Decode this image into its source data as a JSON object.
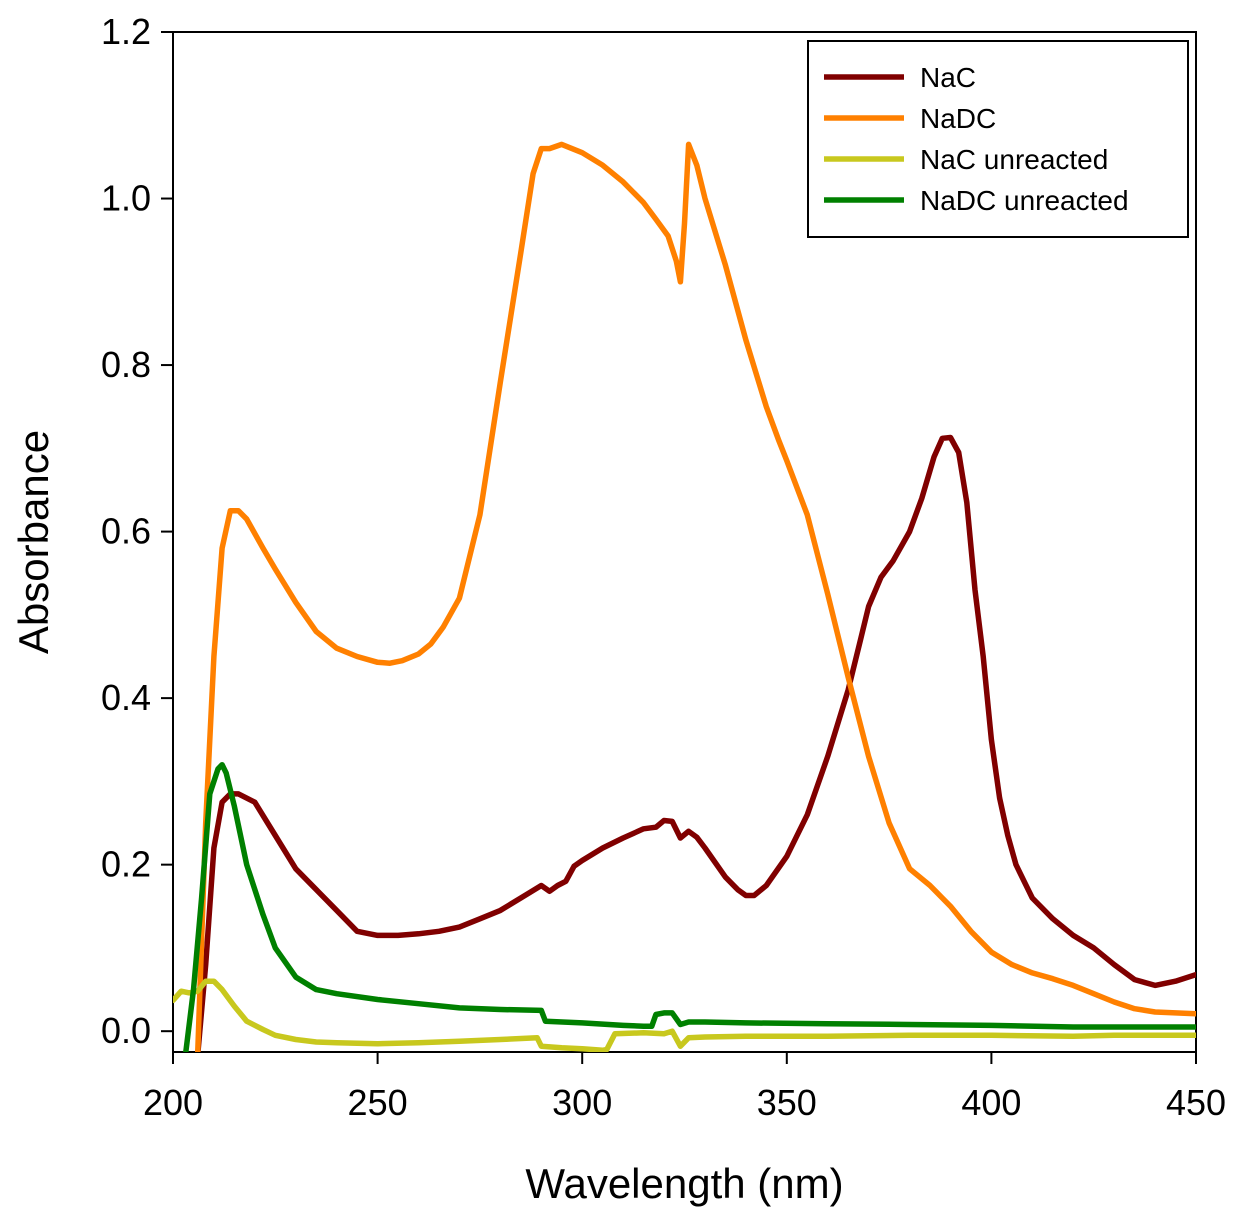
{
  "chart_data": {
    "type": "line",
    "title": "",
    "xlabel": "Wavelength (nm)",
    "ylabel": "Absorbance",
    "xlim": [
      200,
      450
    ],
    "ylim": [
      -0.025,
      1.2
    ],
    "xticks": [
      200,
      250,
      300,
      350,
      400,
      450
    ],
    "yticks": [
      0.0,
      0.2,
      0.4,
      0.6,
      0.8,
      1.0,
      1.2
    ],
    "ytick_labels": [
      "0.0",
      "0.2",
      "0.4",
      "0.6",
      "0.8",
      "1.0",
      "1.2"
    ],
    "grid": false,
    "legend_position": "top-right",
    "series": [
      {
        "name": "NaC",
        "color": "#800000",
        "points": [
          [
            206,
            -0.03
          ],
          [
            208,
            0.08
          ],
          [
            210,
            0.22
          ],
          [
            212,
            0.275
          ],
          [
            214,
            0.285
          ],
          [
            216,
            0.285
          ],
          [
            220,
            0.275
          ],
          [
            225,
            0.235
          ],
          [
            230,
            0.195
          ],
          [
            235,
            0.17
          ],
          [
            240,
            0.145
          ],
          [
            245,
            0.12
          ],
          [
            250,
            0.115
          ],
          [
            255,
            0.115
          ],
          [
            260,
            0.117
          ],
          [
            265,
            0.12
          ],
          [
            270,
            0.125
          ],
          [
            275,
            0.135
          ],
          [
            280,
            0.145
          ],
          [
            285,
            0.16
          ],
          [
            290,
            0.175
          ],
          [
            292,
            0.168
          ],
          [
            294,
            0.175
          ],
          [
            296,
            0.18
          ],
          [
            298,
            0.198
          ],
          [
            300,
            0.205
          ],
          [
            305,
            0.22
          ],
          [
            310,
            0.232
          ],
          [
            315,
            0.243
          ],
          [
            318,
            0.245
          ],
          [
            320,
            0.253
          ],
          [
            322,
            0.252
          ],
          [
            324,
            0.232
          ],
          [
            326,
            0.24
          ],
          [
            328,
            0.233
          ],
          [
            330,
            0.22
          ],
          [
            335,
            0.185
          ],
          [
            338,
            0.17
          ],
          [
            340,
            0.163
          ],
          [
            342,
            0.163
          ],
          [
            345,
            0.175
          ],
          [
            350,
            0.21
          ],
          [
            355,
            0.26
          ],
          [
            360,
            0.33
          ],
          [
            365,
            0.41
          ],
          [
            368,
            0.47
          ],
          [
            370,
            0.51
          ],
          [
            373,
            0.545
          ],
          [
            376,
            0.565
          ],
          [
            380,
            0.6
          ],
          [
            383,
            0.64
          ],
          [
            386,
            0.69
          ],
          [
            388,
            0.712
          ],
          [
            390,
            0.713
          ],
          [
            392,
            0.695
          ],
          [
            394,
            0.635
          ],
          [
            396,
            0.53
          ],
          [
            398,
            0.45
          ],
          [
            400,
            0.35
          ],
          [
            402,
            0.28
          ],
          [
            404,
            0.235
          ],
          [
            406,
            0.2
          ],
          [
            408,
            0.18
          ],
          [
            410,
            0.16
          ],
          [
            415,
            0.135
          ],
          [
            420,
            0.115
          ],
          [
            425,
            0.1
          ],
          [
            430,
            0.08
          ],
          [
            435,
            0.062
          ],
          [
            440,
            0.055
          ],
          [
            445,
            0.06
          ],
          [
            450,
            0.068
          ]
        ]
      },
      {
        "name": "NaDC",
        "color": "#ff8000",
        "points": [
          [
            206,
            -0.03
          ],
          [
            208,
            0.25
          ],
          [
            210,
            0.45
          ],
          [
            212,
            0.58
          ],
          [
            214,
            0.625
          ],
          [
            216,
            0.625
          ],
          [
            218,
            0.615
          ],
          [
            222,
            0.58
          ],
          [
            225,
            0.555
          ],
          [
            230,
            0.515
          ],
          [
            235,
            0.48
          ],
          [
            240,
            0.46
          ],
          [
            245,
            0.45
          ],
          [
            250,
            0.443
          ],
          [
            253,
            0.442
          ],
          [
            256,
            0.445
          ],
          [
            260,
            0.453
          ],
          [
            263,
            0.465
          ],
          [
            266,
            0.485
          ],
          [
            270,
            0.52
          ],
          [
            275,
            0.62
          ],
          [
            280,
            0.78
          ],
          [
            285,
            0.935
          ],
          [
            288,
            1.03
          ],
          [
            290,
            1.06
          ],
          [
            292,
            1.06
          ],
          [
            295,
            1.065
          ],
          [
            300,
            1.055
          ],
          [
            305,
            1.04
          ],
          [
            310,
            1.02
          ],
          [
            315,
            0.995
          ],
          [
            318,
            0.975
          ],
          [
            321,
            0.955
          ],
          [
            323,
            0.925
          ],
          [
            324,
            0.9
          ],
          [
            325,
            0.97
          ],
          [
            326,
            1.065
          ],
          [
            328,
            1.04
          ],
          [
            330,
            1.0
          ],
          [
            335,
            0.92
          ],
          [
            340,
            0.83
          ],
          [
            345,
            0.75
          ],
          [
            348,
            0.71
          ],
          [
            350,
            0.685
          ],
          [
            355,
            0.62
          ],
          [
            360,
            0.525
          ],
          [
            365,
            0.425
          ],
          [
            370,
            0.33
          ],
          [
            375,
            0.25
          ],
          [
            380,
            0.195
          ],
          [
            385,
            0.175
          ],
          [
            388,
            0.16
          ],
          [
            390,
            0.15
          ],
          [
            395,
            0.12
          ],
          [
            400,
            0.095
          ],
          [
            405,
            0.08
          ],
          [
            410,
            0.07
          ],
          [
            415,
            0.063
          ],
          [
            420,
            0.055
          ],
          [
            425,
            0.045
          ],
          [
            430,
            0.035
          ],
          [
            435,
            0.027
          ],
          [
            440,
            0.023
          ],
          [
            445,
            0.022
          ],
          [
            450,
            0.021
          ]
        ]
      },
      {
        "name": "NaC unreacted",
        "color": "#c8c81e",
        "points": [
          [
            200,
            0.037
          ],
          [
            202,
            0.048
          ],
          [
            204,
            0.046
          ],
          [
            206,
            0.048
          ],
          [
            208,
            0.06
          ],
          [
            210,
            0.06
          ],
          [
            212,
            0.05
          ],
          [
            215,
            0.03
          ],
          [
            218,
            0.012
          ],
          [
            222,
            0.002
          ],
          [
            225,
            -0.005
          ],
          [
            230,
            -0.01
          ],
          [
            235,
            -0.013
          ],
          [
            240,
            -0.014
          ],
          [
            250,
            -0.015
          ],
          [
            260,
            -0.014
          ],
          [
            270,
            -0.012
          ],
          [
            280,
            -0.01
          ],
          [
            289,
            -0.008
          ],
          [
            290,
            -0.018
          ],
          [
            295,
            -0.02
          ],
          [
            300,
            -0.021
          ],
          [
            305,
            -0.023
          ],
          [
            306,
            -0.022
          ],
          [
            308,
            -0.003
          ],
          [
            315,
            -0.002
          ],
          [
            320,
            -0.003
          ],
          [
            322,
            0.0
          ],
          [
            324,
            -0.018
          ],
          [
            326,
            -0.008
          ],
          [
            330,
            -0.007
          ],
          [
            340,
            -0.006
          ],
          [
            360,
            -0.006
          ],
          [
            380,
            -0.005
          ],
          [
            400,
            -0.005
          ],
          [
            420,
            -0.006
          ],
          [
            430,
            -0.005
          ],
          [
            450,
            -0.005
          ]
        ]
      },
      {
        "name": "NaDC unreacted",
        "color": "#008000",
        "points": [
          [
            203,
            -0.03
          ],
          [
            205,
            0.05
          ],
          [
            207,
            0.16
          ],
          [
            209,
            0.285
          ],
          [
            211,
            0.315
          ],
          [
            212,
            0.32
          ],
          [
            213,
            0.31
          ],
          [
            215,
            0.27
          ],
          [
            218,
            0.2
          ],
          [
            222,
            0.14
          ],
          [
            225,
            0.1
          ],
          [
            230,
            0.065
          ],
          [
            235,
            0.05
          ],
          [
            240,
            0.045
          ],
          [
            250,
            0.038
          ],
          [
            260,
            0.033
          ],
          [
            270,
            0.028
          ],
          [
            280,
            0.026
          ],
          [
            290,
            0.025
          ],
          [
            291,
            0.012
          ],
          [
            300,
            0.01
          ],
          [
            310,
            0.007
          ],
          [
            315,
            0.006
          ],
          [
            317,
            0.006
          ],
          [
            318,
            0.02
          ],
          [
            320,
            0.022
          ],
          [
            322,
            0.022
          ],
          [
            324,
            0.008
          ],
          [
            326,
            0.011
          ],
          [
            330,
            0.011
          ],
          [
            340,
            0.01
          ],
          [
            360,
            0.009
          ],
          [
            380,
            0.008
          ],
          [
            400,
            0.007
          ],
          [
            420,
            0.005
          ],
          [
            430,
            0.005
          ],
          [
            450,
            0.005
          ]
        ]
      }
    ]
  }
}
